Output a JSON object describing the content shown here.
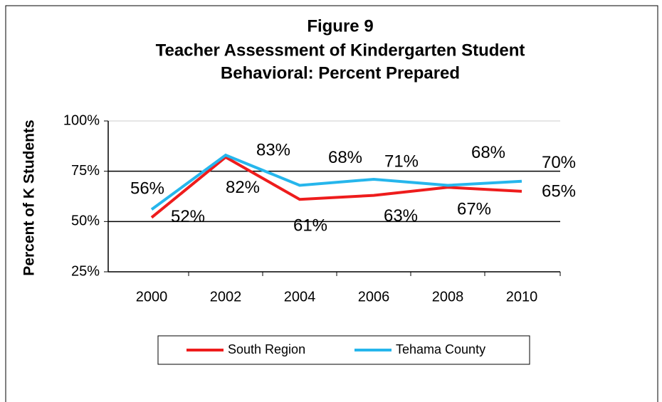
{
  "chart_data": {
    "type": "line",
    "title": [
      "Figure 9",
      "Teacher Assessment of Kindergarten Student",
      "Behavioral: Percent Prepared"
    ],
    "y_label": "Percent of K Students",
    "categories": [
      "2000",
      "2002",
      "2004",
      "2006",
      "2008",
      "2010"
    ],
    "series": [
      {
        "name": "South Region",
        "color": "#ee1c1c",
        "values": [
          52,
          82,
          61,
          63,
          67,
          65
        ],
        "value_labels": [
          "52%",
          "82%",
          "61%",
          "63%",
          "67%",
          "65%"
        ]
      },
      {
        "name": "Tehama County",
        "color": "#26b6ec",
        "values": [
          56,
          83,
          68,
          71,
          68,
          70
        ],
        "value_labels": [
          "56%",
          "83%",
          "68%",
          "71%",
          "68%",
          "70%"
        ]
      }
    ],
    "ylim": [
      25,
      100
    ],
    "yticks": [
      {
        "value": 25,
        "label": "25%"
      },
      {
        "value": 50,
        "label": "50%"
      },
      {
        "value": 75,
        "label": "75%"
      },
      {
        "value": 100,
        "label": "100%"
      }
    ],
    "grid": true,
    "legend": "bottom"
  }
}
